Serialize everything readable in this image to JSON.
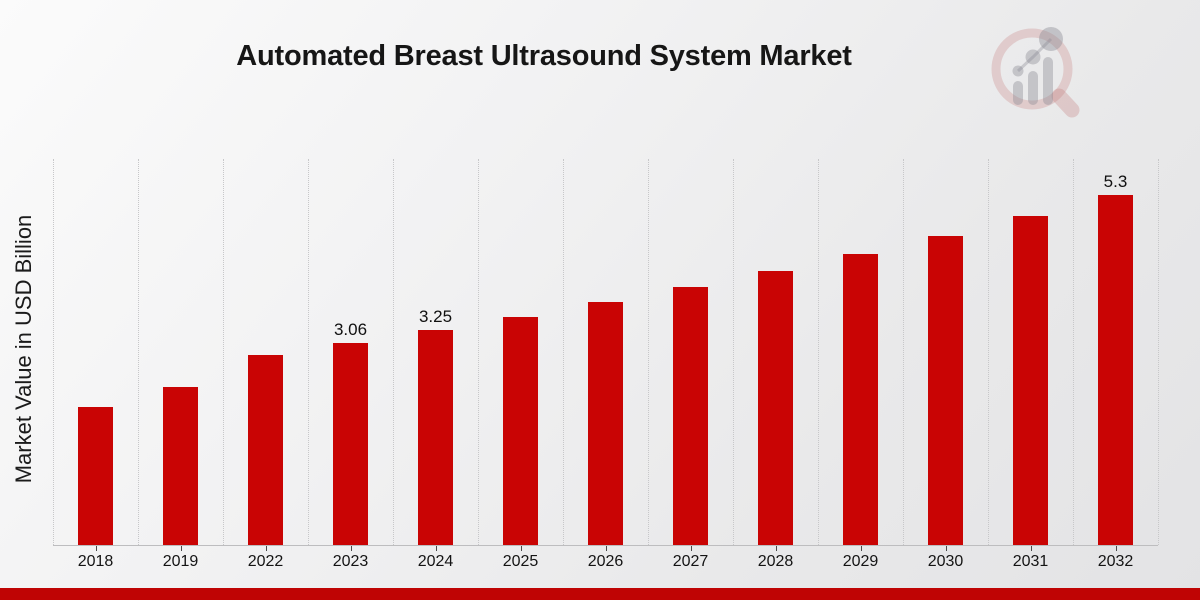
{
  "header": {
    "title": "Automated Breast Ultrasound System Market"
  },
  "chart_data": {
    "type": "bar",
    "title": "Automated Breast Ultrasound System Market",
    "xlabel": "",
    "ylabel": "Market Value in USD Billion",
    "categories": [
      "2018",
      "2019",
      "2022",
      "2023",
      "2024",
      "2025",
      "2026",
      "2027",
      "2028",
      "2029",
      "2030",
      "2031",
      "2032"
    ],
    "values": [
      2.09,
      2.39,
      2.88,
      3.06,
      3.25,
      3.46,
      3.68,
      3.91,
      4.15,
      4.41,
      4.68,
      4.98,
      5.3
    ],
    "value_labels": [
      "",
      "",
      "",
      "3.06",
      "3.25",
      "",
      "",
      "",
      "",
      "",
      "",
      "",
      "5.3"
    ],
    "ylim": [
      0,
      5.85
    ],
    "grid": "vertical dotted lines between categories",
    "legend": "none",
    "bar_color": "#c90404",
    "accent_strip_color": "#bf0404",
    "watermark_icon": "magnifier-bar-chart-icon"
  }
}
